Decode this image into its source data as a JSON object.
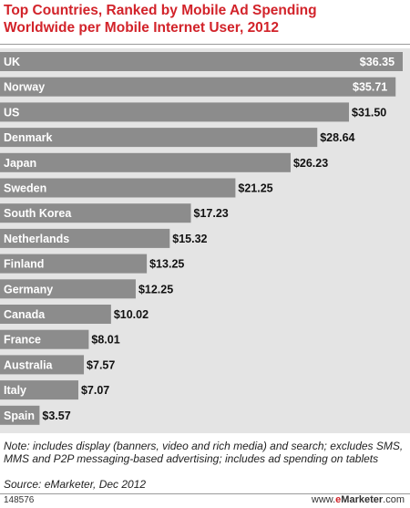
{
  "header": {
    "title_line1": "Top Countries, Ranked by Mobile Ad Spending",
    "title_line2": "Worldwide per Mobile Internet User, 2012"
  },
  "chart_data": {
    "type": "bar",
    "orientation": "horizontal",
    "title": "Top Countries, Ranked by Mobile Ad Spending Worldwide per Mobile Internet User, 2012",
    "categories": [
      "UK",
      "Norway",
      "US",
      "Denmark",
      "Japan",
      "Sweden",
      "South Korea",
      "Netherlands",
      "Finland",
      "Germany",
      "Canada",
      "France",
      "Australia",
      "Italy",
      "Spain"
    ],
    "values": [
      36.35,
      35.71,
      31.5,
      28.64,
      26.23,
      21.25,
      17.23,
      15.32,
      13.25,
      12.25,
      10.02,
      8.01,
      7.57,
      7.07,
      3.57
    ],
    "value_labels": [
      "$36.35",
      "$35.71",
      "$31.50",
      "$28.64",
      "$26.23",
      "$21.25",
      "$17.23",
      "$15.32",
      "$13.25",
      "$12.25",
      "$10.02",
      "$8.01",
      "$7.57",
      "$7.07",
      "$3.57"
    ],
    "grid": false,
    "legend": "none",
    "colors": {
      "bar": "#8c8c8c",
      "plot_background": "#e4e4e4",
      "title": "#d2232a"
    }
  },
  "footer": {
    "note": "Note: includes display (banners, video and rich media) and search; excludes SMS, MMS and P2P messaging-based advertising; includes ad spending on tablets",
    "source": "Source: eMarketer, Dec 2012",
    "chart_id": "148576",
    "brand_prefix": "www.",
    "brand_e": "e",
    "brand_rest": "Marketer",
    "brand_suffix": ".com"
  }
}
